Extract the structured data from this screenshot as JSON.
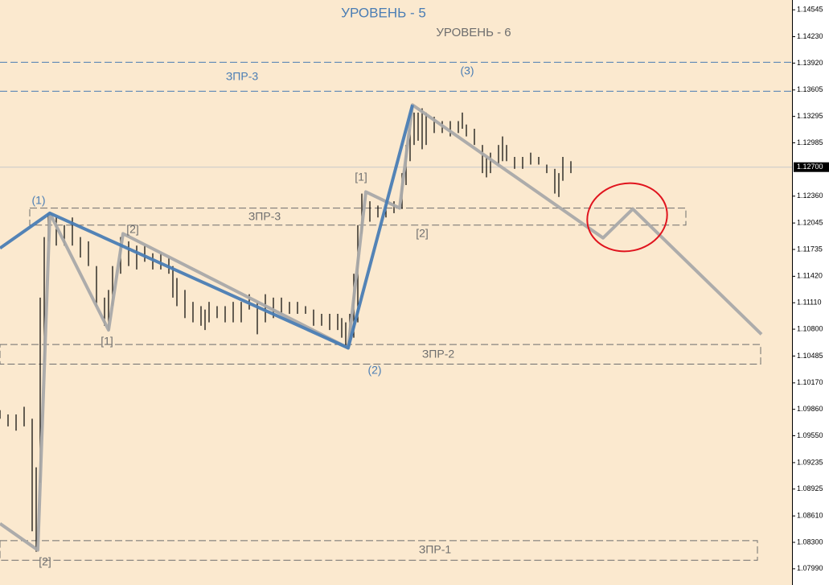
{
  "chart_data": {
    "type": "price-bars",
    "title": "УРОВЕНЬ - 5",
    "subtitle": "УРОВЕНЬ - 6",
    "bar_color": "#000000",
    "x": [
      0,
      2,
      4,
      6,
      8,
      9,
      10,
      11,
      12,
      14,
      16,
      18,
      20,
      22,
      24,
      26,
      27,
      28,
      30,
      32,
      34,
      36,
      38,
      40,
      42,
      43,
      44,
      46,
      48,
      50,
      51,
      52,
      54,
      56,
      58,
      60,
      62,
      64,
      66,
      68,
      70,
      72,
      74,
      76,
      78,
      80,
      82,
      84,
      85,
      86,
      87,
      88,
      89,
      90,
      92,
      94,
      96,
      98,
      100,
      101,
      102,
      103,
      104,
      105,
      106,
      108,
      110,
      112,
      114,
      115,
      116,
      118,
      120,
      121,
      122,
      124,
      125,
      126,
      128,
      130,
      132,
      134,
      136,
      138,
      139,
      140,
      142
    ],
    "high": [
      1.0985,
      1.098,
      1.098,
      1.0989,
      1.0975,
      1.0918,
      1.1117,
      1.1188,
      1.1216,
      1.1211,
      1.1202,
      1.1211,
      1.1188,
      1.1183,
      1.1154,
      1.1117,
      1.1126,
      1.1154,
      1.1188,
      1.1183,
      1.1178,
      1.1178,
      1.1169,
      1.1169,
      1.1164,
      1.1154,
      1.114,
      1.1126,
      1.1112,
      1.1107,
      1.1103,
      1.1112,
      1.1107,
      1.1107,
      1.1112,
      1.1112,
      1.1121,
      1.1112,
      1.1121,
      1.1117,
      1.1117,
      1.1112,
      1.1112,
      1.1107,
      1.1103,
      1.1098,
      1.1098,
      1.1098,
      1.1093,
      1.1088,
      1.1098,
      1.1145,
      1.1202,
      1.1239,
      1.123,
      1.1225,
      1.1225,
      1.123,
      1.1263,
      1.1296,
      1.1315,
      1.1334,
      1.1334,
      1.1339,
      1.1334,
      1.1329,
      1.1324,
      1.1324,
      1.1324,
      1.1334,
      1.132,
      1.1315,
      1.1296,
      1.1282,
      1.1287,
      1.1296,
      1.1306,
      1.1296,
      1.1282,
      1.1282,
      1.1287,
      1.1282,
      1.1273,
      1.1268,
      1.1263,
      1.1282,
      1.1277
    ],
    "low": [
      1.0975,
      1.0966,
      1.0961,
      1.0966,
      1.0843,
      1.0819,
      1.09,
      1.1041,
      1.1183,
      1.1178,
      1.1178,
      1.1178,
      1.1164,
      1.1154,
      1.1107,
      1.1084,
      1.1079,
      1.1107,
      1.1145,
      1.1154,
      1.115,
      1.1159,
      1.115,
      1.115,
      1.1145,
      1.1117,
      1.1107,
      1.1093,
      1.1088,
      1.1084,
      1.1079,
      1.1088,
      1.1093,
      1.1088,
      1.1088,
      1.1088,
      1.1103,
      1.1074,
      1.1088,
      1.1093,
      1.1098,
      1.1098,
      1.1098,
      1.1098,
      1.1084,
      1.1084,
      1.1079,
      1.1079,
      1.107,
      1.106,
      1.106,
      1.107,
      1.1088,
      1.1192,
      1.1206,
      1.1211,
      1.1211,
      1.1216,
      1.1221,
      1.1249,
      1.1277,
      1.1296,
      1.1301,
      1.1291,
      1.1296,
      1.131,
      1.131,
      1.1306,
      1.131,
      1.1315,
      1.1306,
      1.1296,
      1.1263,
      1.1258,
      1.1263,
      1.1273,
      1.1277,
      1.1277,
      1.1268,
      1.1268,
      1.1273,
      1.1273,
      1.1263,
      1.1239,
      1.1235,
      1.1254,
      1.1263
    ],
    "waves": [
      {
        "color": "#a9a9a9",
        "x": [
          0,
          9.4,
          12.4,
          27,
          30.6,
          86.6,
          91,
          99.4,
          102.6,
          150,
          157.4,
          189.4
        ],
        "values": [
          1.0852,
          1.0821,
          1.1216,
          1.1079,
          1.1192,
          1.1058,
          1.1241,
          1.1222,
          1.1343,
          1.1187,
          1.1221,
          1.1074
        ]
      },
      {
        "color": "#4a7db4",
        "x": [
          0,
          12.4,
          86.6,
          102.6
        ],
        "values": [
          1.1175,
          1.1216,
          1.1058,
          1.1343
        ]
      }
    ],
    "zones": [
      {
        "name": "ЗПР-3",
        "color": "#4a7db4",
        "border": "lines",
        "x": [
          0,
          197
        ],
        "range": [
          1.1359,
          1.1393
        ]
      },
      {
        "name": "ЗПР-3",
        "color": "#6e6e6e",
        "border": "box",
        "x": [
          7.4,
          170.6
        ],
        "range": [
          1.1202,
          1.1222
        ]
      },
      {
        "name": "ЗПР-2",
        "color": "#6e6e6e",
        "border": "box",
        "x": [
          0,
          189.2
        ],
        "range": [
          1.1039,
          1.1062
        ]
      },
      {
        "name": "ЗПР-1",
        "color": "#6e6e6e",
        "border": "box",
        "x": [
          0,
          188.4
        ],
        "range": [
          1.0809,
          1.0832
        ]
      }
    ],
    "labels": [
      "(1)",
      "[1]",
      "[2]",
      "[2]",
      "(2)",
      "[1]",
      "[2]",
      "(3)"
    ],
    "last_price": {
      "value": 1.127,
      "label": "1.12700"
    },
    "xlim": [
      0,
      197
    ],
    "ylim": [
      1.078,
      1.1466
    ],
    "yticks": [
      {
        "value": 1.14545,
        "label": "1.14545"
      },
      {
        "value": 1.1423,
        "label": "1.14230"
      },
      {
        "value": 1.1392,
        "label": "1.13920"
      },
      {
        "value": 1.13605,
        "label": "1.13605"
      },
      {
        "value": 1.13295,
        "label": "1.13295"
      },
      {
        "value": 1.12985,
        "label": "1.12985"
      },
      {
        "value": 1.1236,
        "label": "1.12360"
      },
      {
        "value": 1.12045,
        "label": "1.12045"
      },
      {
        "value": 1.11735,
        "label": "1.11735"
      },
      {
        "value": 1.1142,
        "label": "1.11420"
      },
      {
        "value": 1.1111,
        "label": "1.11110"
      },
      {
        "value": 1.108,
        "label": "1.10800"
      },
      {
        "value": 1.10485,
        "label": "1.10485"
      },
      {
        "value": 1.1017,
        "label": "1.10170"
      },
      {
        "value": 1.0986,
        "label": "1.09860"
      },
      {
        "value": 1.0955,
        "label": "1.09550"
      },
      {
        "value": 1.09235,
        "label": "1.09235"
      },
      {
        "value": 1.08925,
        "label": "1.08925"
      },
      {
        "value": 1.0861,
        "label": "1.08610"
      },
      {
        "value": 1.083,
        "label": "1.08300"
      },
      {
        "value": 1.0799,
        "label": "1.07990"
      }
    ]
  }
}
